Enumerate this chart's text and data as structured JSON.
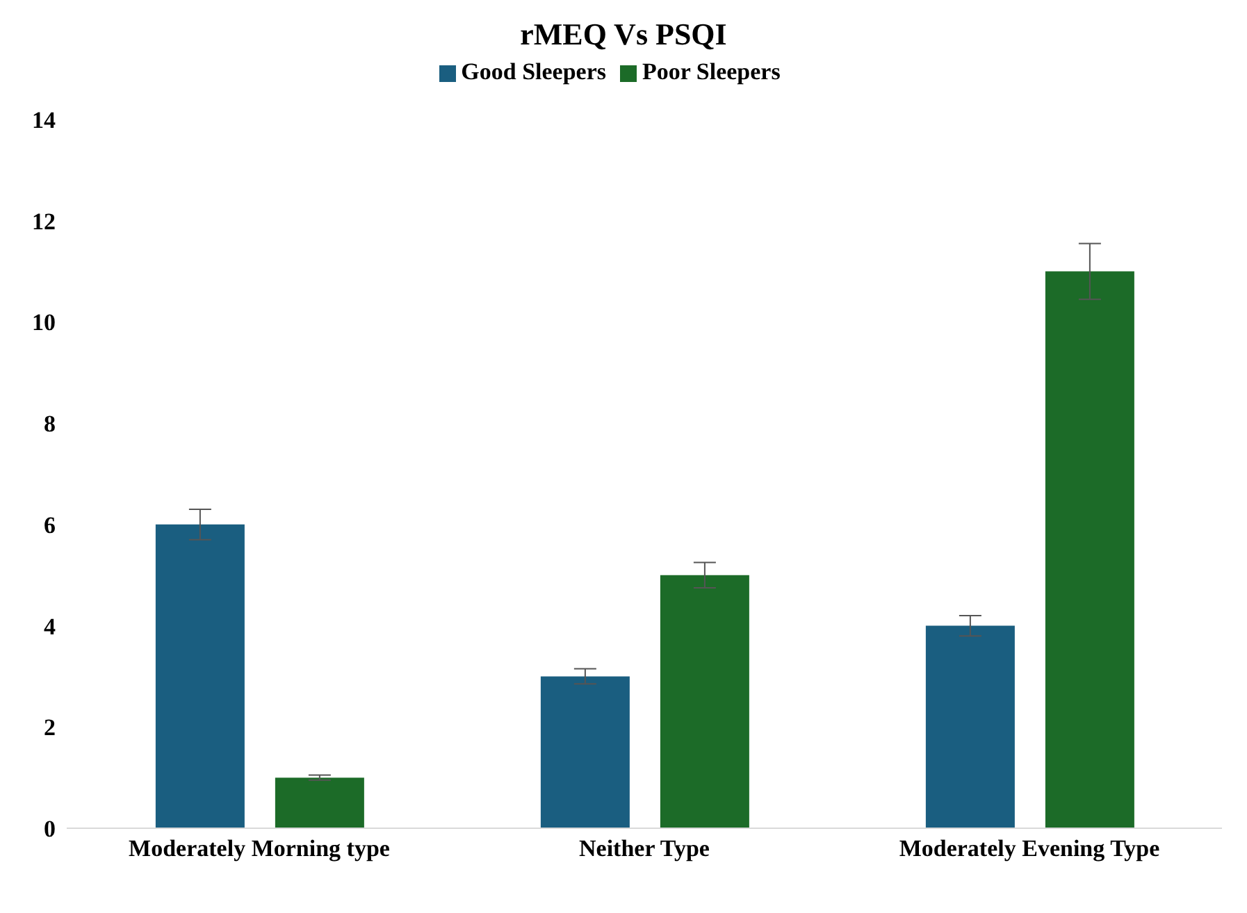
{
  "chart_data": {
    "type": "bar",
    "title": "rMEQ Vs PSQI",
    "categories": [
      "Moderately Morning type",
      "Neither Type",
      "Moderately Evening Type"
    ],
    "series": [
      {
        "name": "Good Sleepers",
        "color": "#1a5e80",
        "values": [
          6,
          3,
          4
        ],
        "errors": [
          0.3,
          0.15,
          0.2
        ]
      },
      {
        "name": "Poor Sleepers",
        "color": "#1c6b28",
        "values": [
          1,
          5,
          11
        ],
        "errors": [
          0.05,
          0.25,
          0.55
        ]
      }
    ],
    "ylim": [
      0,
      14
    ],
    "yticks": [
      0,
      2,
      4,
      6,
      8,
      10,
      12,
      14
    ],
    "grid": false,
    "legend": "top"
  }
}
